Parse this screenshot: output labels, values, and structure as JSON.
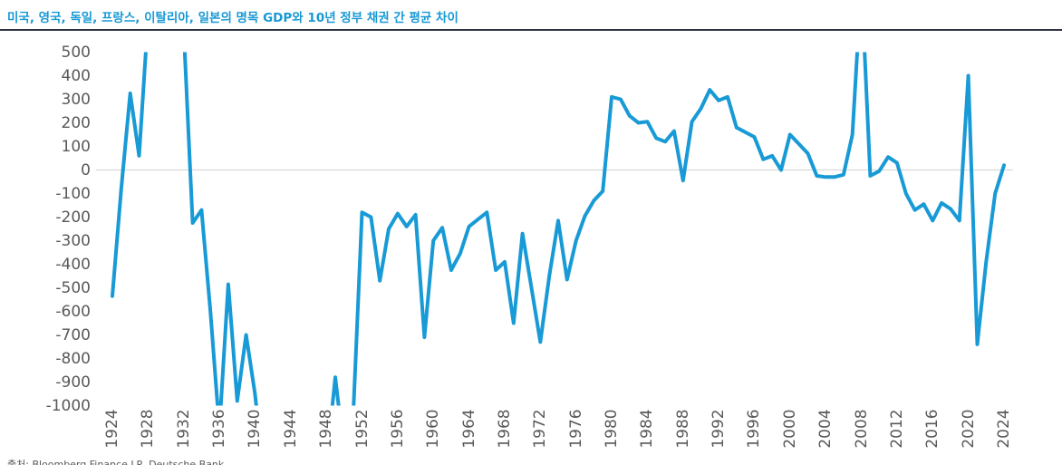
{
  "header": {
    "title": "미국, 영국, 독일, 프랑스, 이탈리아, 일본의 명목 GDP와 10년 정부 채권 간 평균 차이"
  },
  "footer": {
    "source": "출처: Bloomberg Finance LP, Deutsche Bank"
  },
  "colors": {
    "line": "#189AD6",
    "title": "#1899D4",
    "rule": "#2B3340",
    "tick": "#595959",
    "gridline": "#D9D9D9"
  },
  "chart_data": {
    "type": "line",
    "title": "미국, 영국, 독일, 프랑스, 이탈리아, 일본의 명목 GDP와 10년 정부 채권 간 평균 차이",
    "xlabel": "",
    "ylabel": "",
    "xlim": [
      1924,
      2024
    ],
    "ylim": [
      -1000,
      500
    ],
    "y_ticks": [
      500,
      400,
      300,
      200,
      100,
      0,
      -100,
      -200,
      -300,
      -400,
      -500,
      -600,
      -700,
      -800,
      -900,
      -1000
    ],
    "x_ticks": [
      1924,
      1928,
      1932,
      1936,
      1940,
      1944,
      1948,
      1952,
      1956,
      1960,
      1964,
      1968,
      1972,
      1976,
      1980,
      1984,
      1988,
      1992,
      1996,
      2000,
      2004,
      2008,
      2012,
      2016,
      2020,
      2024
    ],
    "grid": "horizontal zero line only",
    "legend": "none",
    "clip_to_ylim": true,
    "x": [
      1924,
      1925,
      1926,
      1927,
      1928,
      1929,
      1930,
      1931,
      1932,
      1933,
      1934,
      1935,
      1936,
      1937,
      1938,
      1939,
      1940,
      1941,
      1942,
      1943,
      1944,
      1945,
      1946,
      1947,
      1948,
      1949,
      1950,
      1951,
      1952,
      1953,
      1954,
      1955,
      1956,
      1957,
      1958,
      1959,
      1960,
      1961,
      1962,
      1963,
      1964,
      1965,
      1966,
      1967,
      1968,
      1969,
      1970,
      1971,
      1972,
      1973,
      1974,
      1975,
      1976,
      1977,
      1978,
      1979,
      1980,
      1981,
      1982,
      1983,
      1984,
      1985,
      1986,
      1987,
      1988,
      1989,
      1990,
      1991,
      1992,
      1993,
      1994,
      1995,
      1996,
      1997,
      1998,
      1999,
      2000,
      2001,
      2002,
      2003,
      2004,
      2005,
      2006,
      2007,
      2008,
      2009,
      2010,
      2011,
      2012,
      2013,
      2014,
      2015,
      2016,
      2017,
      2018,
      2019,
      2020,
      2021,
      2022,
      2023,
      2024
    ],
    "values": [
      -535,
      -80,
      325,
      60,
      650,
      900,
      900,
      800,
      600,
      -225,
      -170,
      -600,
      -1100,
      -485,
      -980,
      -700,
      -950,
      -1300,
      -1300,
      -1300,
      -1300,
      -1300,
      -1300,
      -1300,
      -1250,
      -880,
      -1200,
      -1050,
      -180,
      -200,
      -470,
      -250,
      -185,
      -240,
      -190,
      -710,
      -300,
      -245,
      -425,
      -355,
      -240,
      -210,
      -180,
      -425,
      -390,
      -650,
      -270,
      -500,
      -730,
      -450,
      -215,
      -465,
      -300,
      -195,
      -130,
      -90,
      310,
      300,
      230,
      200,
      205,
      135,
      120,
      165,
      -45,
      205,
      260,
      340,
      295,
      310,
      180,
      160,
      140,
      45,
      60,
      0,
      150,
      110,
      70,
      -25,
      -30,
      -30,
      -20,
      150,
      800,
      -25,
      -5,
      55,
      30,
      -100,
      -170,
      -145,
      -215,
      -140,
      -165,
      -215,
      400,
      -740,
      -390,
      -100,
      20
    ]
  }
}
